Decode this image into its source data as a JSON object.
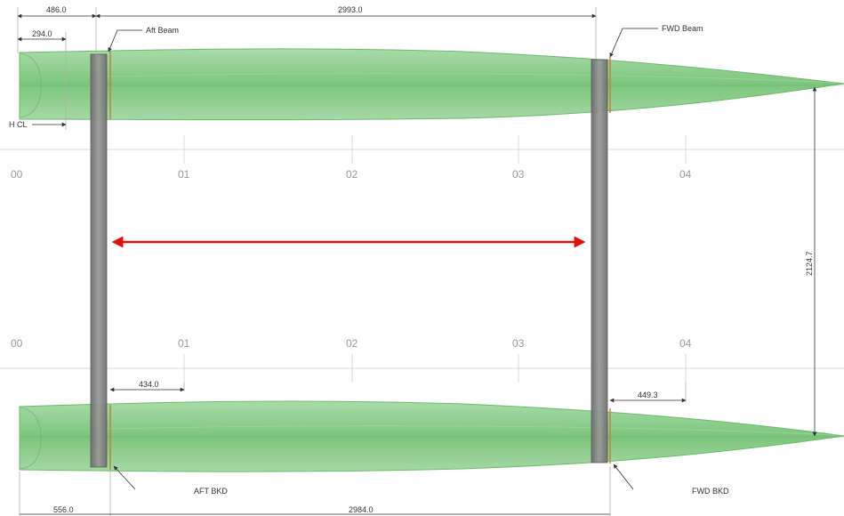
{
  "dimensions": {
    "top_left_outer": "486.0",
    "top_left_inner": "294.0",
    "beam_spacing": "2993.0",
    "aft_bkd_offset": "434.0",
    "fwd_bkd_offset": "449.3",
    "bottom_left": "556.0",
    "bottom_span": "2984.0",
    "hull_spacing": "2124.7"
  },
  "labels": {
    "aft_beam": "Aft Beam",
    "fwd_beam": "FWD Beam",
    "hull_cl": "H CL",
    "aft_bkd": "AFT BKD",
    "fwd_bkd": "FWD BKD"
  },
  "stations_top": [
    "00",
    "01",
    "02",
    "03",
    "04"
  ],
  "stations_bottom": [
    "00",
    "01",
    "02",
    "03",
    "04"
  ],
  "colors": {
    "hull_fill": "#8fcf8f",
    "hull_edge": "#6fb86f",
    "beam_fill": "#808080",
    "arrow": "#e01010",
    "bulkhead": "#c87a3a"
  }
}
